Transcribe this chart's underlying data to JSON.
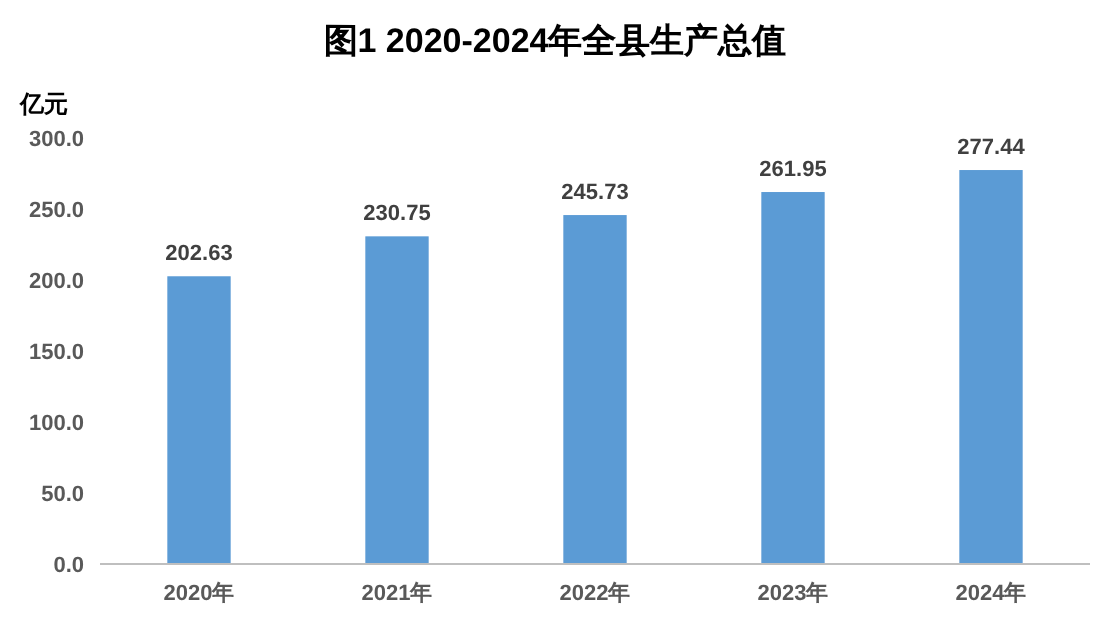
{
  "chart_data": {
    "type": "bar",
    "title": "图1   2020-2024年全县生产总值",
    "ylabel": "亿元",
    "categories": [
      "2020年",
      "2021年",
      "2022年",
      "2023年",
      "2024年"
    ],
    "values": [
      202.63,
      230.75,
      245.73,
      261.95,
      277.44
    ],
    "color": "#5b9bd5",
    "ylim": [
      0,
      300
    ],
    "yticks": [
      {
        "value": 0,
        "label": "0.0"
      },
      {
        "value": 50,
        "label": "50.0"
      },
      {
        "value": 100,
        "label": "100.0"
      },
      {
        "value": 150,
        "label": "150.0"
      },
      {
        "value": 200,
        "label": "200.0"
      },
      {
        "value": 250,
        "label": "250.0"
      },
      {
        "value": 300,
        "label": "300.0"
      }
    ],
    "data_labels": true,
    "grid": false,
    "legend": false
  }
}
